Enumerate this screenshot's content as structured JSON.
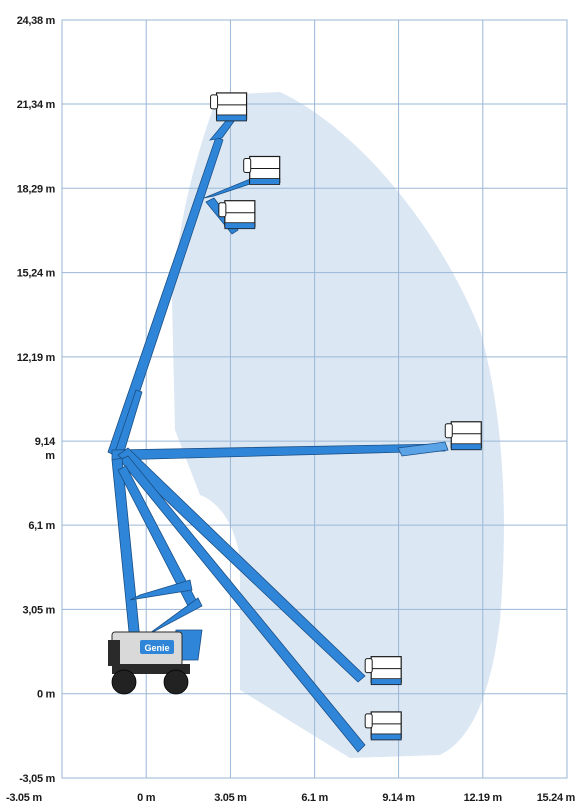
{
  "chart_data": {
    "type": "diagram",
    "y_axis": {
      "ticks": [
        {
          "label": "24,38 m",
          "value": 24.38
        },
        {
          "label": "21,34 m",
          "value": 21.34
        },
        {
          "label": "18,29 m",
          "value": 18.29
        },
        {
          "label": "15,24 m",
          "value": 15.24
        },
        {
          "label": "12,19 m",
          "value": 12.19
        },
        {
          "label": "9,14",
          "value": 9.14
        },
        {
          "label": "6,1 m",
          "value": 6.1
        },
        {
          "label": "3,05 m",
          "value": 3.05
        },
        {
          "label": "0 m",
          "value": 0
        },
        {
          "label": "-3,05 m",
          "value": -3.05
        }
      ],
      "unit_label": "m",
      "range": [
        -3.05,
        24.38
      ]
    },
    "x_axis": {
      "ticks": [
        {
          "label": "-3.05 m",
          "value": -3.05
        },
        {
          "label": "0 m",
          "value": 0
        },
        {
          "label": "3.05 m",
          "value": 3.05
        },
        {
          "label": "6.1 m",
          "value": 6.1
        },
        {
          "label": "9.14 m",
          "value": 9.14
        },
        {
          "label": "12.19 m",
          "value": 12.19
        },
        {
          "label": "15.24 m",
          "value": 15.24
        }
      ],
      "range": [
        -3.05,
        15.24
      ]
    },
    "grid": true,
    "machine": {
      "brand_label": "Genie"
    },
    "envelope_color": "#dce7f4",
    "boom_color": "#2f86d8",
    "platform_positions": [
      {
        "x": 3.2,
        "y": 20.8
      },
      {
        "x": 4.4,
        "y": 18.5
      },
      {
        "x": 3.5,
        "y": 16.9
      },
      {
        "x": 11.7,
        "y": 8.9
      },
      {
        "x": 8.8,
        "y": 0.4
      },
      {
        "x": 8.8,
        "y": -1.6
      }
    ]
  }
}
